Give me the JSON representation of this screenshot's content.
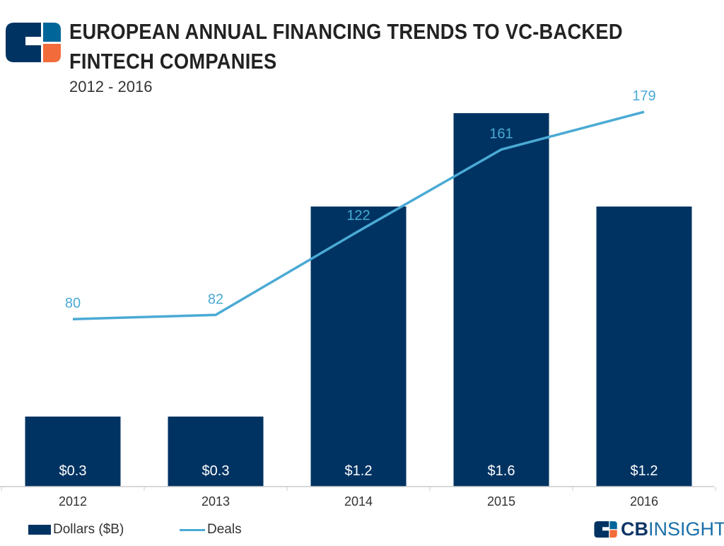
{
  "title_line1": "EUROPEAN ANNUAL FINANCING TRENDS TO VC-BACKED",
  "title_line2": "FINTECH COMPANIES",
  "subtitle": "2012 - 2016",
  "brand": {
    "cb": "CB",
    "insights": "INSIGHTS"
  },
  "colors": {
    "bars": "#003362",
    "line": "#4aaad4",
    "logo_blue": "#006699",
    "logo_orange": "#f26b3a"
  },
  "chart_data": {
    "type": "bar+line",
    "categories": [
      "2012",
      "2013",
      "2014",
      "2015",
      "2016"
    ],
    "series": [
      {
        "name": "Dollars ($B)",
        "type": "bar",
        "values": [
          0.3,
          0.3,
          1.2,
          1.6,
          1.2
        ],
        "labels": [
          "$0.3",
          "$0.3",
          "$1.2",
          "$1.6",
          "$1.2"
        ]
      },
      {
        "name": "Deals",
        "type": "line",
        "values": [
          80,
          82,
          122,
          161,
          179
        ]
      }
    ],
    "legend": "bottom-left",
    "grid": false
  }
}
